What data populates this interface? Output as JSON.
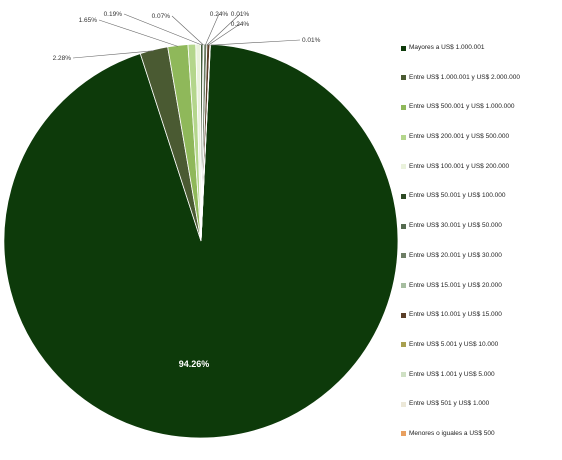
{
  "chart_data": {
    "type": "pie",
    "title": "",
    "slices": [
      {
        "label": "Mayores a US$ 1.000.001",
        "value": 94.26,
        "display": "94.26%",
        "color": "#0d3a0a"
      },
      {
        "label": "Entre US$ 1.000.001 y US$ 2.000.000",
        "value": 2.28,
        "display": "2.28%",
        "color": "#4a5a32"
      },
      {
        "label": "Entre US$ 500.001 y US$ 1.000.000",
        "value": 1.65,
        "display": "1.65%",
        "color": "#8fb85a"
      },
      {
        "label": "Entre US$ 200.001 y US$ 500.000",
        "value": 0.63,
        "display": "",
        "color": "#b4d68c"
      },
      {
        "label": "Entre US$ 100.001 y US$ 200.000",
        "value": 0.4,
        "display": "",
        "color": "#eaf2dc"
      },
      {
        "label": "Entre US$ 50.001 y US$ 100.000",
        "value": 0.19,
        "display": "0.19%",
        "color": "#2d4a24"
      },
      {
        "label": "Entre US$ 30.001 y US$ 50.000",
        "value": 0.07,
        "display": "0.07%",
        "color": "#556b50"
      },
      {
        "label": "Entre US$ 20.001 y US$ 30.000",
        "value": 0.24,
        "display": "0.24%",
        "color": "#6e7e66"
      },
      {
        "label": "Entre US$ 15.001 y US$ 20.000",
        "value": 0.01,
        "display": "0.01%",
        "color": "#a6bda0"
      },
      {
        "label": "Entre US$ 10.001 y US$ 15.000",
        "value": 0.24,
        "display": "0.24%",
        "color": "#5a3e28"
      },
      {
        "label": "Entre US$ 5.001 y US$ 10.000",
        "value": 0.01,
        "display": "",
        "color": "#a8a050"
      },
      {
        "label": "Entre US$ 1.001 y US$ 5.000",
        "value": 0.01,
        "display": "",
        "color": "#cfe0c4"
      },
      {
        "label": "Entre US$ 501 y US$ 1.000",
        "value": 0.01,
        "display": "",
        "color": "#ece8d8"
      },
      {
        "label": "Menores o iguales a US$ 500",
        "value": 0.01,
        "display": "0.01%",
        "color": "#e8a060"
      }
    ],
    "legend_position": "right"
  }
}
